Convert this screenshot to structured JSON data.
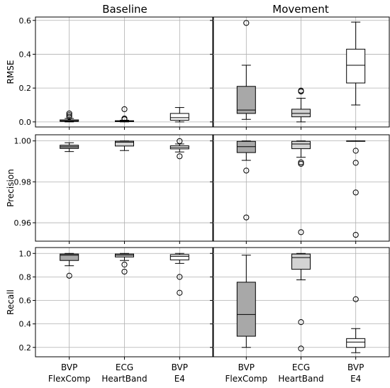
{
  "columns": [
    "Baseline",
    "Movement"
  ],
  "row_labels": [
    "RMSE",
    "Precision",
    "Recall"
  ],
  "categories": [
    [
      "BVP",
      "FlexComp"
    ],
    [
      "ECG",
      "HeartBand"
    ],
    [
      "BVP",
      "E4"
    ]
  ],
  "colors": {
    "dark_box": "#a8a8a8",
    "light_box": "#d3d3d3",
    "white_box": "#ffffff"
  },
  "rows": [
    {
      "ylabel": "RMSE",
      "yticks": [
        0.0,
        0.2,
        0.4,
        0.6
      ],
      "tick_labels": [
        "0.0",
        "0.2",
        "0.4",
        "0.6"
      ],
      "ylim": [
        -0.03,
        0.62
      ]
    },
    {
      "ylabel": "Precision",
      "yticks": [
        0.96,
        0.98,
        1.0
      ],
      "tick_labels": [
        "0.96",
        "0.98",
        "1.00"
      ],
      "ylim": [
        0.951,
        1.003
      ]
    },
    {
      "ylabel": "Recall",
      "yticks": [
        0.2,
        0.4,
        0.6,
        0.8,
        1.0
      ],
      "tick_labels": [
        "0.2",
        "0.4",
        "0.6",
        "0.8",
        "1.0"
      ],
      "ylim": [
        0.12,
        1.05
      ]
    }
  ],
  "chart_data": {
    "type": "boxplot",
    "title": "",
    "panels": [
      {
        "row": "RMSE",
        "column": "Baseline",
        "boxes": [
          {
            "category": "BVP FlexComp",
            "whislo": 0.0,
            "q1": 0.003,
            "med": 0.006,
            "q3": 0.012,
            "whishi": 0.02,
            "fliers": [
              0.03,
              0.04,
              0.05
            ],
            "fill": "dark"
          },
          {
            "category": "ECG HeartBand",
            "whislo": 0.0,
            "q1": 0.002,
            "med": 0.004,
            "q3": 0.007,
            "whishi": 0.01,
            "fliers": [
              0.015,
              0.02,
              0.075
            ],
            "fill": "light"
          },
          {
            "category": "BVP E4",
            "whislo": 0.0,
            "q1": 0.01,
            "med": 0.025,
            "q3": 0.05,
            "whishi": 0.085,
            "fliers": [],
            "fill": "white"
          }
        ]
      },
      {
        "row": "RMSE",
        "column": "Movement",
        "boxes": [
          {
            "category": "BVP FlexComp",
            "whislo": 0.015,
            "q1": 0.05,
            "med": 0.07,
            "q3": 0.21,
            "whishi": 0.335,
            "fliers": [
              0.585
            ],
            "fill": "dark"
          },
          {
            "category": "ECG HeartBand",
            "whislo": 0.0,
            "q1": 0.03,
            "med": 0.05,
            "q3": 0.075,
            "whishi": 0.14,
            "fliers": [
              0.18,
              0.185
            ],
            "fill": "light"
          },
          {
            "category": "BVP E4",
            "whislo": 0.1,
            "q1": 0.23,
            "med": 0.335,
            "q3": 0.43,
            "whishi": 0.59,
            "fliers": [],
            "fill": "white"
          }
        ]
      },
      {
        "row": "Precision",
        "column": "Baseline",
        "boxes": [
          {
            "category": "BVP FlexComp",
            "whislo": 0.9948,
            "q1": 0.9963,
            "med": 0.9971,
            "q3": 0.9979,
            "whishi": 0.9991,
            "fliers": [],
            "fill": "dark"
          },
          {
            "category": "ECG HeartBand",
            "whislo": 0.9953,
            "q1": 0.9975,
            "med": 0.9994,
            "q3": 0.9999,
            "whishi": 1.0,
            "fliers": [],
            "fill": "light"
          },
          {
            "category": "BVP E4",
            "whislo": 0.9946,
            "q1": 0.9961,
            "med": 0.9968,
            "q3": 0.9976,
            "whishi": 0.9985,
            "fliers": [
              0.9925,
              0.9999
            ],
            "fill": "white"
          }
        ]
      },
      {
        "row": "Precision",
        "column": "Movement",
        "boxes": [
          {
            "category": "BVP FlexComp",
            "whislo": 0.9905,
            "q1": 0.9943,
            "med": 0.9972,
            "q3": 0.9998,
            "whishi": 1.0,
            "fliers": [
              0.9855,
              0.9626
            ],
            "fill": "dark"
          },
          {
            "category": "ECG HeartBand",
            "whislo": 0.992,
            "q1": 0.9962,
            "med": 0.9985,
            "q3": 0.9998,
            "whishi": 1.0,
            "fliers": [
              0.9895,
              0.9888,
              0.9554
            ],
            "fill": "light"
          },
          {
            "category": "BVP E4",
            "whislo": 1.0,
            "q1": 1.0,
            "med": 1.0,
            "q3": 1.0,
            "whishi": 1.0,
            "fliers": [
              0.9952,
              0.9893,
              0.9748,
              0.9541
            ],
            "fill": "white"
          }
        ]
      },
      {
        "row": "Recall",
        "column": "Baseline",
        "boxes": [
          {
            "category": "BVP FlexComp",
            "whislo": 0.895,
            "q1": 0.94,
            "med": 0.985,
            "q3": 0.995,
            "whishi": 1.0,
            "fliers": [
              0.81
            ],
            "fill": "dark"
          },
          {
            "category": "ECG HeartBand",
            "whislo": 0.94,
            "q1": 0.97,
            "med": 0.985,
            "q3": 0.995,
            "whishi": 1.0,
            "fliers": [
              0.905,
              0.845
            ],
            "fill": "light"
          },
          {
            "category": "BVP E4",
            "whislo": 0.915,
            "q1": 0.945,
            "med": 0.975,
            "q3": 0.99,
            "whishi": 1.0,
            "fliers": [
              0.8,
              0.665
            ],
            "fill": "white"
          }
        ]
      },
      {
        "row": "Recall",
        "column": "Movement",
        "boxes": [
          {
            "category": "BVP FlexComp",
            "whislo": 0.2,
            "q1": 0.295,
            "med": 0.48,
            "q3": 0.755,
            "whishi": 0.985,
            "fliers": [],
            "fill": "dark"
          },
          {
            "category": "ECG HeartBand",
            "whislo": 0.775,
            "q1": 0.865,
            "med": 0.965,
            "q3": 0.995,
            "whishi": 1.0,
            "fliers": [
              0.415,
              0.19
            ],
            "fill": "light"
          },
          {
            "category": "BVP E4",
            "whislo": 0.155,
            "q1": 0.2,
            "med": 0.245,
            "q3": 0.275,
            "whishi": 0.36,
            "fliers": [
              0.61
            ],
            "fill": "white"
          }
        ]
      }
    ],
    "grid": true
  }
}
